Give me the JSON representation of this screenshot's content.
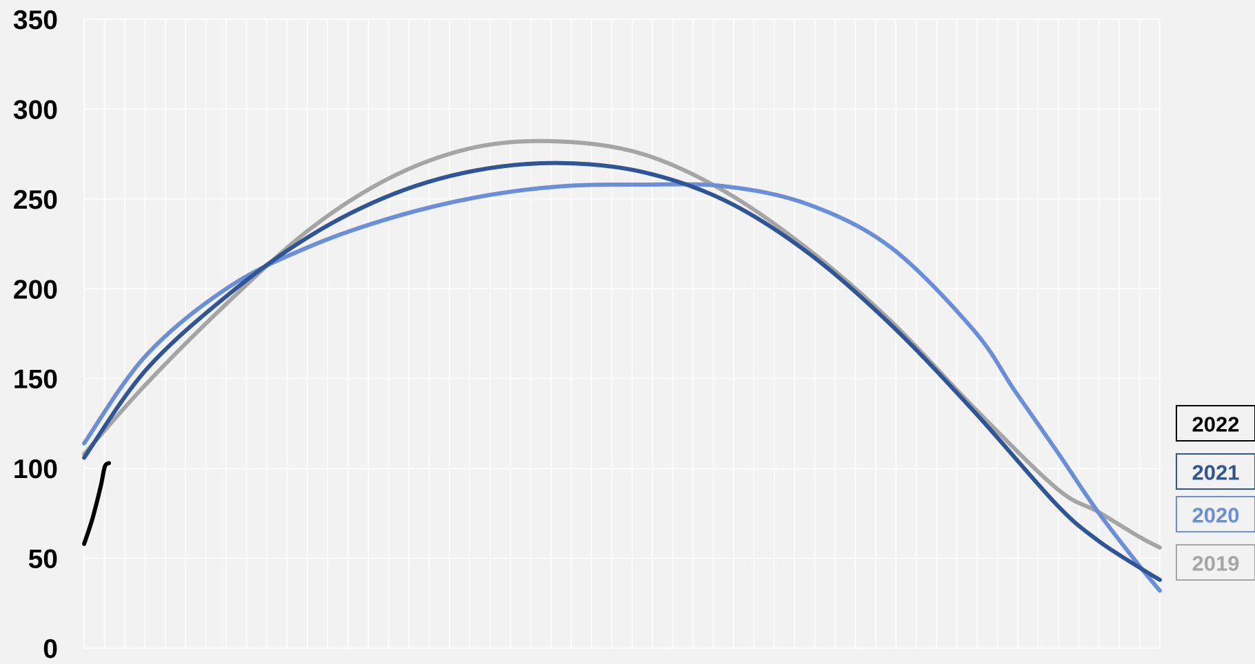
{
  "chart_data": {
    "type": "line",
    "title": "",
    "xlabel": "",
    "ylabel": "",
    "ylim": [
      0,
      350
    ],
    "y_ticks": [
      "0",
      "50",
      "100",
      "150",
      "200",
      "250",
      "300",
      "350"
    ],
    "x_range": [
      1,
      53
    ],
    "x_gridlines": 53,
    "grid": true,
    "legend_position": "right",
    "series": [
      {
        "name": "2022",
        "color": "#000000",
        "x": [
          1,
          1.4,
          1.8,
          2.0,
          2.2
        ],
        "values": [
          58,
          72,
          90,
          101,
          103
        ]
      },
      {
        "name": "2021",
        "color": "#2f5597",
        "x": [
          1,
          4,
          8,
          12,
          16,
          20,
          24,
          28,
          32,
          36,
          40,
          44,
          48,
          50,
          52,
          53
        ],
        "values": [
          106,
          155,
          197,
          230,
          253,
          266,
          270,
          265,
          249,
          220,
          180,
          132,
          80,
          60,
          45,
          38
        ]
      },
      {
        "name": "2020",
        "color": "#6a8fd8",
        "x": [
          1,
          4,
          8,
          12,
          16,
          20,
          24,
          28,
          32,
          36,
          40,
          44,
          46,
          48,
          50,
          52,
          53
        ],
        "values": [
          114,
          163,
          201,
          224,
          240,
          251,
          257,
          258,
          257,
          247,
          223,
          177,
          143,
          110,
          76,
          46,
          32
        ]
      },
      {
        "name": "2019",
        "color": "#a5a5a5",
        "x": [
          1,
          4,
          8,
          12,
          16,
          20,
          24,
          28,
          32,
          36,
          40,
          44,
          48,
          50,
          52,
          53
        ],
        "values": [
          108,
          147,
          193,
          234,
          263,
          279,
          282,
          275,
          254,
          222,
          182,
          134,
          89,
          76,
          62,
          56
        ]
      }
    ]
  }
}
